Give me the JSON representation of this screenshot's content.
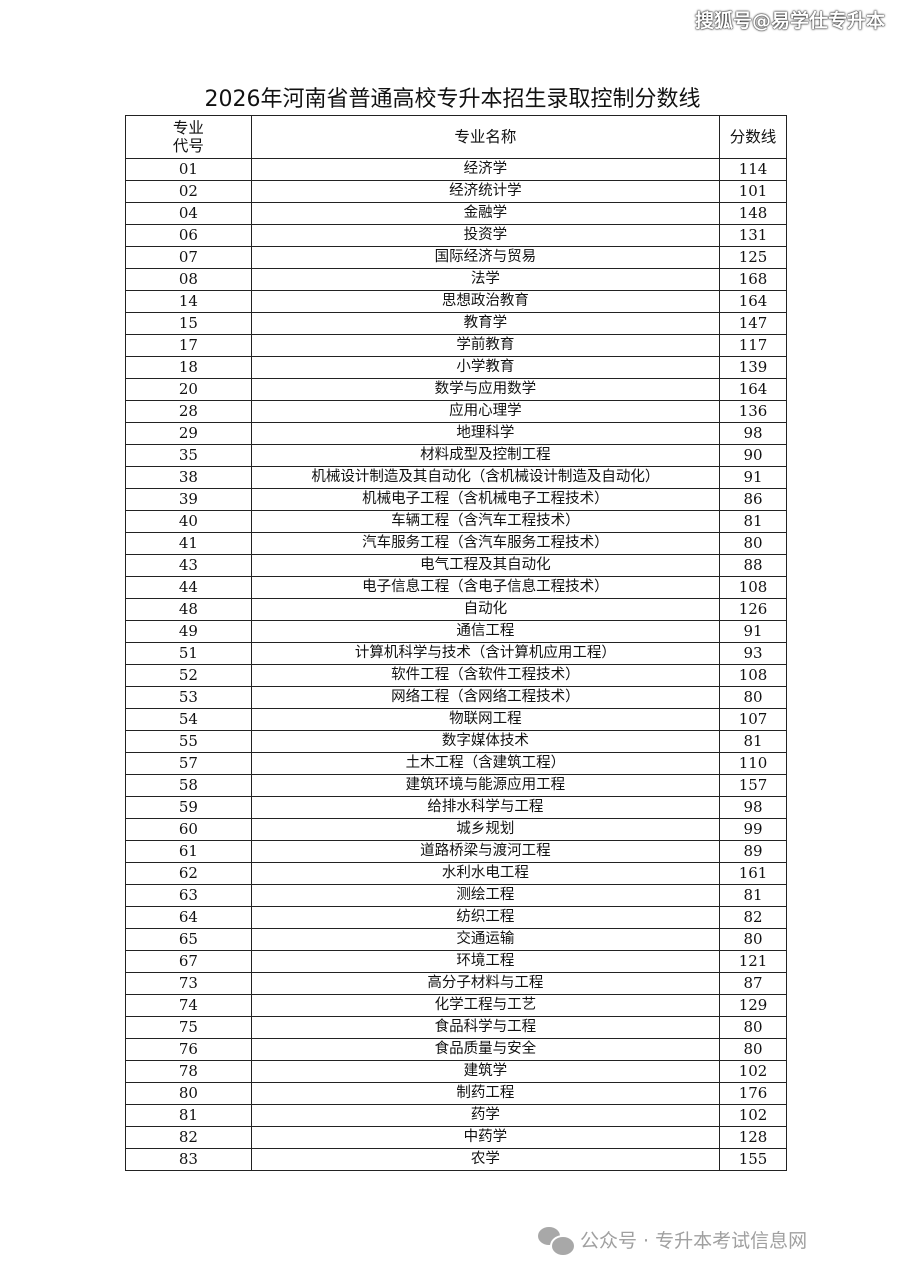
{
  "watermark_top": "搜狐号@易学仕专升本",
  "title": "2026年河南省普通高校专升本招生录取控制分数线",
  "headers": {
    "code": "专业\n代号",
    "code_line1": "专业",
    "code_line2": "代号",
    "name": "专业名称",
    "score": "分数线"
  },
  "rows": [
    {
      "code": "01",
      "name": "经济学",
      "score": "114"
    },
    {
      "code": "02",
      "name": "经济统计学",
      "score": "101"
    },
    {
      "code": "04",
      "name": "金融学",
      "score": "148"
    },
    {
      "code": "06",
      "name": "投资学",
      "score": "131"
    },
    {
      "code": "07",
      "name": "国际经济与贸易",
      "score": "125"
    },
    {
      "code": "08",
      "name": "法学",
      "score": "168"
    },
    {
      "code": "14",
      "name": "思想政治教育",
      "score": "164"
    },
    {
      "code": "15",
      "name": "教育学",
      "score": "147"
    },
    {
      "code": "17",
      "name": "学前教育",
      "score": "117"
    },
    {
      "code": "18",
      "name": "小学教育",
      "score": "139"
    },
    {
      "code": "20",
      "name": "数学与应用数学",
      "score": "164"
    },
    {
      "code": "28",
      "name": "应用心理学",
      "score": "136"
    },
    {
      "code": "29",
      "name": "地理科学",
      "score": "98"
    },
    {
      "code": "35",
      "name": "材料成型及控制工程",
      "score": "90"
    },
    {
      "code": "38",
      "name": "机械设计制造及其自动化（含机械设计制造及自动化）",
      "score": "91"
    },
    {
      "code": "39",
      "name": "机械电子工程（含机械电子工程技术）",
      "score": "86"
    },
    {
      "code": "40",
      "name": "车辆工程（含汽车工程技术）",
      "score": "81"
    },
    {
      "code": "41",
      "name": "汽车服务工程（含汽车服务工程技术）",
      "score": "80"
    },
    {
      "code": "43",
      "name": "电气工程及其自动化",
      "score": "88"
    },
    {
      "code": "44",
      "name": "电子信息工程（含电子信息工程技术）",
      "score": "108"
    },
    {
      "code": "48",
      "name": "自动化",
      "score": "126"
    },
    {
      "code": "49",
      "name": "通信工程",
      "score": "91"
    },
    {
      "code": "51",
      "name": "计算机科学与技术（含计算机应用工程）",
      "score": "93"
    },
    {
      "code": "52",
      "name": "软件工程（含软件工程技术）",
      "score": "108"
    },
    {
      "code": "53",
      "name": "网络工程（含网络工程技术）",
      "score": "80"
    },
    {
      "code": "54",
      "name": "物联网工程",
      "score": "107"
    },
    {
      "code": "55",
      "name": "数字媒体技术",
      "score": "81"
    },
    {
      "code": "57",
      "name": "土木工程（含建筑工程）",
      "score": "110"
    },
    {
      "code": "58",
      "name": "建筑环境与能源应用工程",
      "score": "157"
    },
    {
      "code": "59",
      "name": "给排水科学与工程",
      "score": "98"
    },
    {
      "code": "60",
      "name": "城乡规划",
      "score": "99"
    },
    {
      "code": "61",
      "name": "道路桥梁与渡河工程",
      "score": "89"
    },
    {
      "code": "62",
      "name": "水利水电工程",
      "score": "161"
    },
    {
      "code": "63",
      "name": "测绘工程",
      "score": "81"
    },
    {
      "code": "64",
      "name": "纺织工程",
      "score": "82"
    },
    {
      "code": "65",
      "name": "交通运输",
      "score": "80"
    },
    {
      "code": "67",
      "name": "环境工程",
      "score": "121"
    },
    {
      "code": "73",
      "name": "高分子材料与工程",
      "score": "87"
    },
    {
      "code": "74",
      "name": "化学工程与工艺",
      "score": "129"
    },
    {
      "code": "75",
      "name": "食品科学与工程",
      "score": "80"
    },
    {
      "code": "76",
      "name": "食品质量与安全",
      "score": "80"
    },
    {
      "code": "78",
      "name": "建筑学",
      "score": "102"
    },
    {
      "code": "80",
      "name": "制药工程",
      "score": "176"
    },
    {
      "code": "81",
      "name": "药学",
      "score": "102"
    },
    {
      "code": "82",
      "name": "中药学",
      "score": "128"
    },
    {
      "code": "83",
      "name": "农学",
      "score": "155"
    }
  ],
  "footer": {
    "icon": "wechat-icon",
    "text": "公众号 · 专升本考试信息网"
  }
}
